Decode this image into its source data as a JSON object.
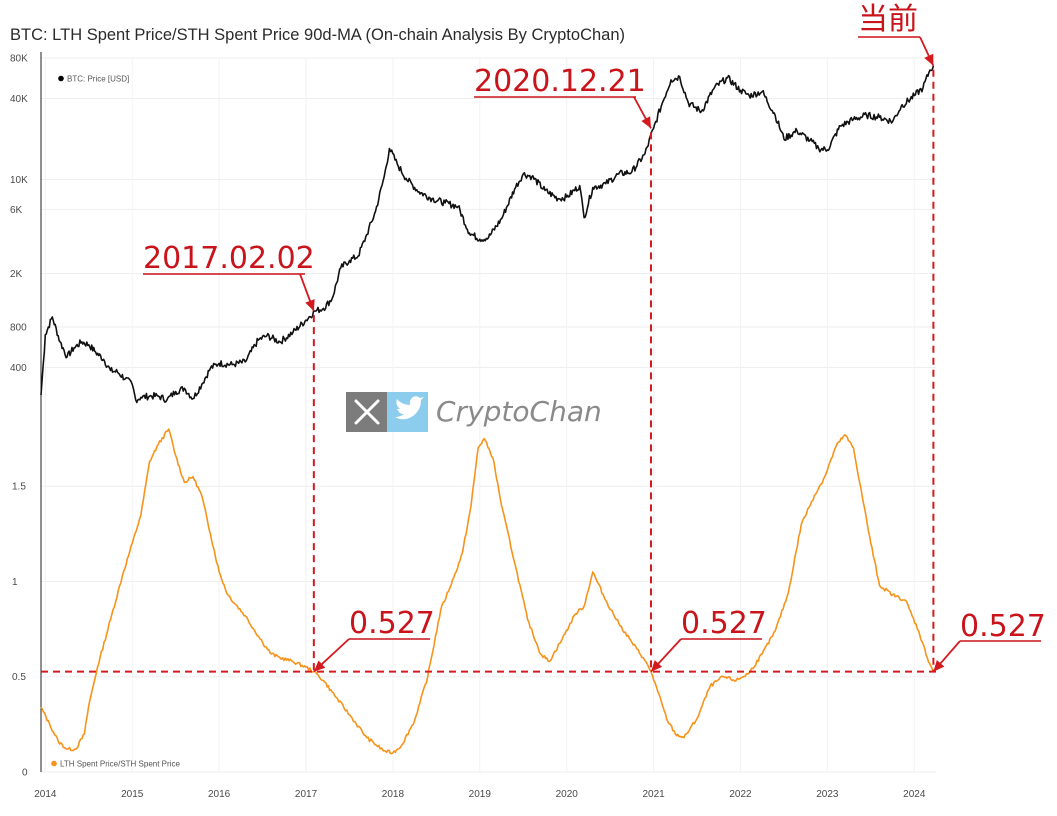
{
  "chart_data": {
    "title": "BTC: LTH Spent Price/STH Spent Price 90d-MA (On-chain Analysis By CryptoChan)",
    "watermark": "CryptoChan",
    "x_axis": {
      "type": "time",
      "ticks": [
        "2014",
        "2015",
        "2016",
        "2017",
        "2018",
        "2019",
        "2020",
        "2021",
        "2022",
        "2023",
        "2024"
      ],
      "range": [
        2013.95,
        2024.25
      ]
    },
    "panels": [
      {
        "name": "price",
        "type": "line",
        "yscale": "log",
        "ylim": [
          200,
          80000
        ],
        "yticks": [
          "80K",
          "40K",
          "10K",
          "6K",
          "2K",
          "800",
          "400"
        ],
        "legend": {
          "label": "BTC: Price [USD]",
          "placement": "top-left",
          "color": "#000000"
        },
        "series": [
          {
            "name": "BTC: Price [USD]",
            "color": "#111111",
            "x": [
              2013.95,
              2014.0,
              2014.08,
              2014.17,
              2014.25,
              2014.33,
              2014.42,
              2014.5,
              2014.58,
              2014.67,
              2014.75,
              2014.83,
              2014.92,
              2015.0,
              2015.04,
              2015.1,
              2015.2,
              2015.3,
              2015.4,
              2015.5,
              2015.6,
              2015.7,
              2015.8,
              2015.9,
              2016.0,
              2016.15,
              2016.3,
              2016.45,
              2016.55,
              2016.7,
              2016.85,
              2017.0,
              2017.1,
              2017.2,
              2017.3,
              2017.4,
              2017.5,
              2017.6,
              2017.7,
              2017.8,
              2017.9,
              2017.96,
              2018.05,
              2018.15,
              2018.3,
              2018.45,
              2018.6,
              2018.75,
              2018.88,
              2019.0,
              2019.1,
              2019.25,
              2019.4,
              2019.5,
              2019.6,
              2019.75,
              2019.9,
              2020.0,
              2020.15,
              2020.2,
              2020.3,
              2020.45,
              2020.6,
              2020.75,
              2020.9,
              2021.0,
              2021.1,
              2021.2,
              2021.3,
              2021.4,
              2021.55,
              2021.7,
              2021.85,
              2022.0,
              2022.1,
              2022.25,
              2022.4,
              2022.5,
              2022.65,
              2022.8,
              2022.9,
              2023.0,
              2023.15,
              2023.3,
              2023.45,
              2023.6,
              2023.75,
              2023.85,
              2024.0,
              2024.1,
              2024.18,
              2024.22
            ],
            "y": [
              250,
              700,
              950,
              620,
              480,
              560,
              620,
              590,
              520,
              460,
              380,
              370,
              330,
              300,
              230,
              240,
              245,
              245,
              230,
              265,
              280,
              235,
              300,
              395,
              430,
              420,
              440,
              640,
              690,
              620,
              730,
              900,
              1050,
              1100,
              1300,
              2200,
              2500,
              2700,
              3900,
              5800,
              10500,
              17000,
              13000,
              10200,
              8100,
              7200,
              6700,
              6300,
              4000,
              3600,
              3700,
              5100,
              8500,
              11000,
              10500,
              8300,
              7200,
              7400,
              9000,
              5200,
              8700,
              9300,
              11000,
              11400,
              15500,
              24000,
              37000,
              55000,
              58000,
              37000,
              32000,
              48000,
              57000,
              46000,
              42000,
              45000,
              30000,
              20000,
              23000,
              19500,
              17000,
              16600,
              25000,
              28000,
              30000,
              29000,
              27000,
              35000,
              42000,
              48000,
              65000,
              70000
            ]
          }
        ]
      },
      {
        "name": "ratio",
        "type": "line",
        "yscale": "linear",
        "ylim": [
          0,
          1.9
        ],
        "yticks": [
          "1.5",
          "1",
          "0.5",
          "0"
        ],
        "legend": {
          "label": "LTH Spent Price/STH Spent Price",
          "placement": "bottom-left",
          "color": "#f7931a"
        },
        "series": [
          {
            "name": "LTH Spent Price/STH Spent Price",
            "color": "#f7931a",
            "x": [
              2013.95,
              2014.05,
              2014.15,
              2014.25,
              2014.35,
              2014.45,
              2014.5,
              2014.6,
              2014.75,
              2014.9,
              2015.0,
              2015.1,
              2015.2,
              2015.3,
              2015.42,
              2015.5,
              2015.6,
              2015.7,
              2015.8,
              2015.9,
              2016.0,
              2016.1,
              2016.3,
              2016.5,
              2016.6,
              2016.7,
              2016.85,
              2017.0,
              2017.09,
              2017.2,
              2017.3,
              2017.5,
              2017.7,
              2017.9,
              2018.0,
              2018.1,
              2018.25,
              2018.4,
              2018.55,
              2018.7,
              2018.8,
              2018.9,
              2018.98,
              2019.05,
              2019.15,
              2019.25,
              2019.4,
              2019.55,
              2019.7,
              2019.8,
              2019.95,
              2020.1,
              2020.2,
              2020.3,
              2020.45,
              2020.6,
              2020.75,
              2020.88,
              2020.97,
              2021.05,
              2021.15,
              2021.25,
              2021.35,
              2021.5,
              2021.65,
              2021.8,
              2021.95,
              2022.1,
              2022.25,
              2022.4,
              2022.55,
              2022.7,
              2022.85,
              2022.97,
              2023.1,
              2023.2,
              2023.3,
              2023.4,
              2023.5,
              2023.6,
              2023.75,
              2023.9,
              2024.05,
              2024.15,
              2024.22
            ],
            "y": [
              0.34,
              0.25,
              0.16,
              0.12,
              0.12,
              0.2,
              0.35,
              0.55,
              0.8,
              1.05,
              1.2,
              1.35,
              1.63,
              1.72,
              1.8,
              1.66,
              1.52,
              1.55,
              1.45,
              1.25,
              1.05,
              0.93,
              0.82,
              0.68,
              0.62,
              0.6,
              0.58,
              0.55,
              0.527,
              0.48,
              0.42,
              0.3,
              0.18,
              0.11,
              0.1,
              0.14,
              0.27,
              0.5,
              0.85,
              1.02,
              1.15,
              1.4,
              1.7,
              1.75,
              1.65,
              1.4,
              1.1,
              0.8,
              0.62,
              0.58,
              0.7,
              0.83,
              0.87,
              1.05,
              0.9,
              0.78,
              0.68,
              0.6,
              0.527,
              0.42,
              0.28,
              0.2,
              0.18,
              0.28,
              0.45,
              0.5,
              0.48,
              0.52,
              0.62,
              0.74,
              0.94,
              1.3,
              1.45,
              1.55,
              1.71,
              1.77,
              1.7,
              1.45,
              1.2,
              0.98,
              0.93,
              0.9,
              0.74,
              0.6,
              0.527
            ]
          }
        ]
      }
    ],
    "annotations": [
      {
        "type": "arrow-label",
        "panel": "price",
        "label": "2017.02.02",
        "x": 2017.09,
        "y": 1050
      },
      {
        "type": "arrow-label",
        "panel": "price",
        "label": "2020.12.21",
        "x": 2020.97,
        "y": 24000
      },
      {
        "type": "arrow-label",
        "panel": "price",
        "label": "当前",
        "x": 2024.22,
        "y": 70000
      },
      {
        "type": "arrow-label",
        "panel": "ratio",
        "label": "0.527",
        "x": 2017.09,
        "y": 0.527
      },
      {
        "type": "arrow-label",
        "panel": "ratio",
        "label": "0.527",
        "x": 2020.97,
        "y": 0.527
      },
      {
        "type": "arrow-label",
        "panel": "ratio",
        "label": "0.527",
        "x": 2024.22,
        "y": 0.527
      },
      {
        "type": "hline",
        "panel": "ratio",
        "y": 0.527
      },
      {
        "type": "vline",
        "x": [
          2017.09,
          2020.97,
          2024.22
        ]
      }
    ],
    "colors": {
      "price_line": "#111111",
      "ratio_line": "#f7931a",
      "annotation": "#d41a1f",
      "watermark_tile": "#7c7c7c",
      "watermark_bird": "#8ccdee",
      "watermark_text": "#8a8a8a"
    },
    "icons": [
      "x-logo-icon",
      "twitter-bird-icon"
    ]
  }
}
